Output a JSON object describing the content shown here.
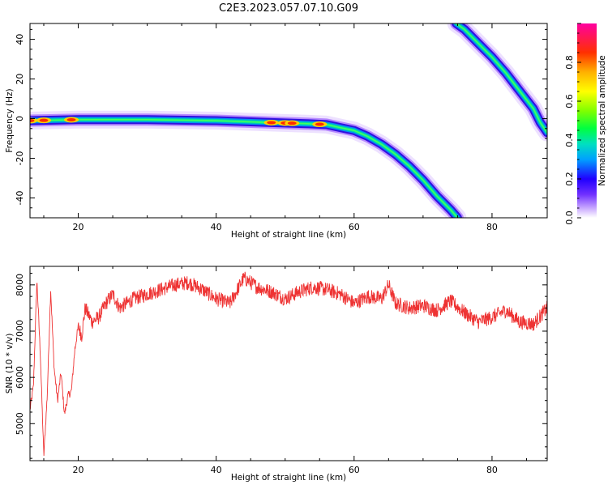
{
  "figure": {
    "title": "C2E3.2023.057.07.10.G09"
  },
  "chart_data": [
    {
      "type": "heatmap",
      "xlabel": "Height of straight line (km)",
      "ylabel": "Frequency (Hz)",
      "xlim": [
        13,
        88
      ],
      "ylim": [
        -50,
        48
      ],
      "x_ticks": [
        20,
        40,
        60,
        80
      ],
      "x_tick_labels": [
        "20",
        "40",
        "60",
        "80"
      ],
      "y_ticks": [
        -40,
        -20,
        0,
        20,
        40
      ],
      "y_tick_labels": [
        "-40",
        "-20",
        "0",
        "20",
        "40"
      ],
      "traces": [
        {
          "points": [
            [
              13,
              -1
            ],
            [
              20,
              -0.5
            ],
            [
              30,
              -0.5
            ],
            [
              40,
              -1
            ],
            [
              48,
              -2
            ],
            [
              53,
              -2.5
            ],
            [
              56,
              -3
            ],
            [
              58,
              -4.5
            ],
            [
              60,
              -6
            ],
            [
              62,
              -9
            ],
            [
              64,
              -13
            ],
            [
              66,
              -18
            ],
            [
              68,
              -24
            ],
            [
              70,
              -31
            ],
            [
              72,
              -39
            ],
            [
              74,
              -46
            ],
            [
              75,
              -50
            ]
          ],
          "hotspots": [
            13,
            15,
            19,
            48,
            50,
            51,
            55
          ]
        },
        {
          "points": [
            [
              74.8,
              48
            ],
            [
              76,
              45
            ],
            [
              78,
              38
            ],
            [
              80,
              31
            ],
            [
              82,
              23
            ],
            [
              84,
              14
            ],
            [
              86,
              5
            ],
            [
              87,
              -2
            ],
            [
              88,
              -7
            ]
          ]
        }
      ],
      "colorbar": {
        "label": "Normalized spectral amplitude",
        "range": [
          0,
          1
        ],
        "ticks": [
          0,
          0.2,
          0.4,
          0.6,
          0.8
        ],
        "tick_labels": [
          "0.0",
          "0.2",
          "0.4",
          "0.6",
          "0.8"
        ]
      }
    },
    {
      "type": "line",
      "xlabel": "Height of straight line (km)",
      "ylabel": "SNR (10 * v/v)",
      "xlim": [
        13,
        88
      ],
      "ylim": [
        4200,
        8400
      ],
      "x_ticks": [
        20,
        40,
        60,
        80
      ],
      "x_tick_labels": [
        "20",
        "40",
        "60",
        "80"
      ],
      "y_ticks": [
        5000,
        6000,
        7000,
        8000
      ],
      "y_tick_labels": [
        "5000",
        "6000",
        "7000",
        "8000"
      ],
      "line_color": "#ee3333",
      "series": [
        {
          "x": [
            13,
            13.5,
            14,
            14.5,
            15,
            15.5,
            16,
            16.5,
            17,
            17.5,
            18,
            18.5,
            19,
            19.5,
            20,
            20.5,
            21,
            22,
            23,
            24,
            25,
            26,
            28,
            30,
            32,
            34,
            36,
            38,
            40,
            42,
            44,
            46,
            48,
            50,
            52,
            54,
            56,
            58,
            60,
            62,
            64,
            65,
            66,
            68,
            70,
            72,
            74,
            76,
            78,
            80,
            82,
            84,
            86,
            88
          ],
          "y": [
            5300,
            5800,
            8100,
            6500,
            4300,
            5600,
            7900,
            6200,
            5500,
            6100,
            5200,
            5600,
            5700,
            6600,
            7100,
            6900,
            7500,
            7200,
            7300,
            7600,
            7800,
            7500,
            7700,
            7800,
            7900,
            8000,
            8050,
            7900,
            7700,
            7600,
            8150,
            7950,
            7850,
            7700,
            7850,
            7950,
            7900,
            7800,
            7600,
            7750,
            7700,
            8000,
            7600,
            7500,
            7550,
            7450,
            7650,
            7400,
            7200,
            7300,
            7450,
            7200,
            7150,
            7500
          ]
        }
      ]
    }
  ]
}
